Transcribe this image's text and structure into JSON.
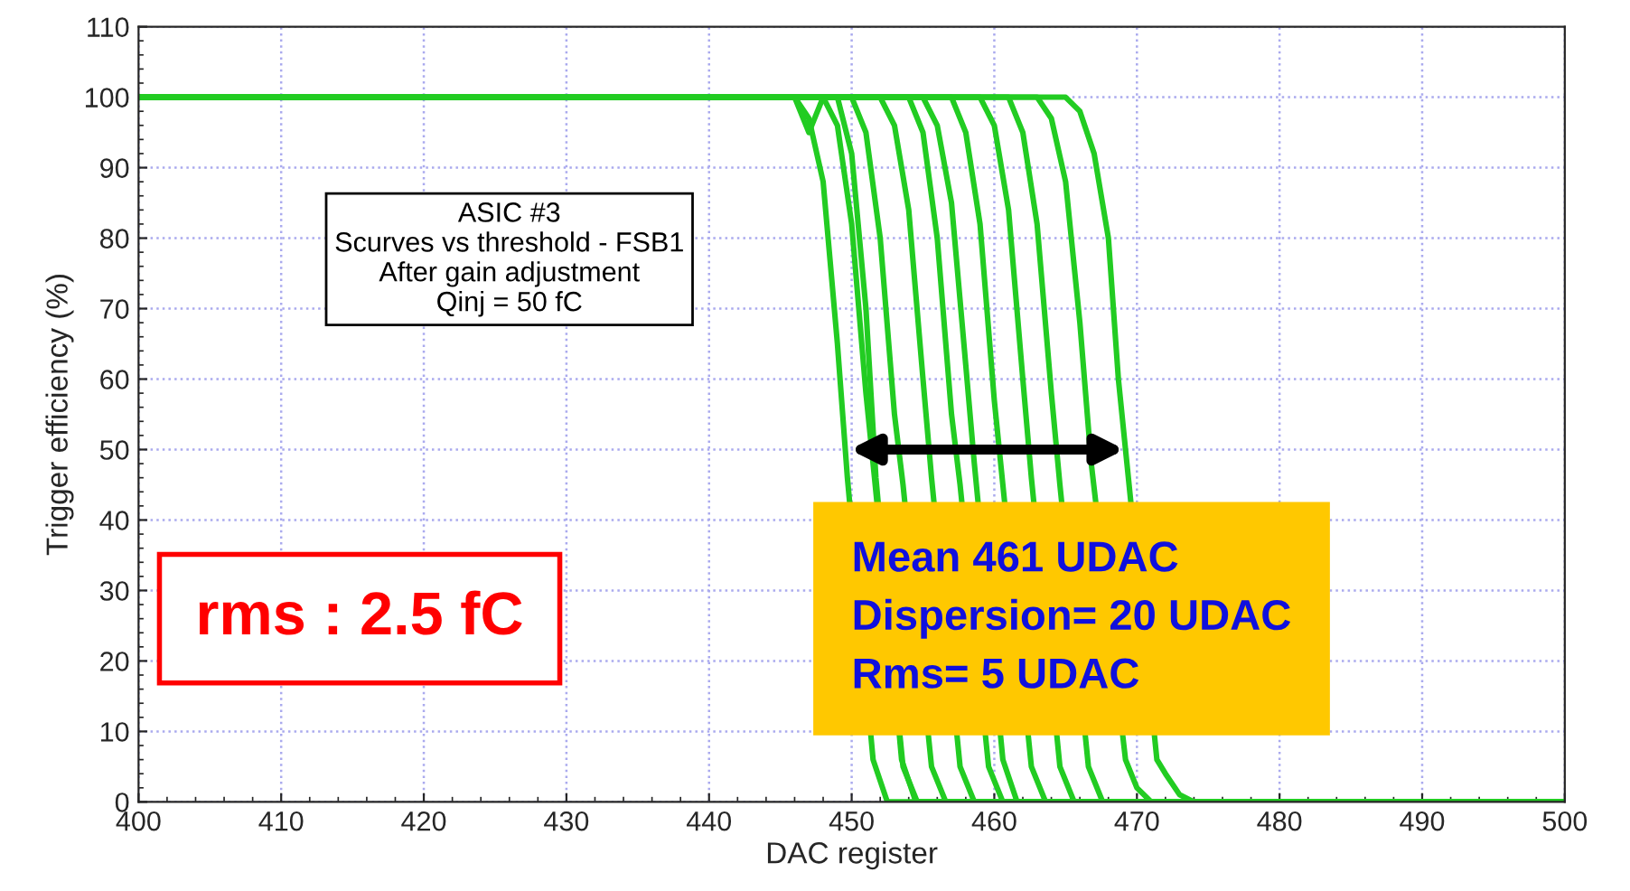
{
  "chart_data": {
    "type": "line",
    "xlabel": "DAC register",
    "ylabel": "Trigger efficiency (%)",
    "xlim": [
      400,
      500
    ],
    "xticks": [
      400,
      410,
      420,
      430,
      440,
      450,
      460,
      470,
      480,
      490,
      500
    ],
    "ylim": [
      0,
      110
    ],
    "yticks": [
      0,
      10,
      20,
      30,
      40,
      50,
      60,
      70,
      80,
      90,
      100,
      110
    ],
    "grid": true,
    "marker": "none",
    "line_style": "solid",
    "series": [
      {
        "color": "#22cc22",
        "x": [
          400,
          446,
          447,
          448,
          449,
          449.7,
          451.5,
          452.5,
          500
        ],
        "values": [
          100,
          100,
          97,
          88,
          65,
          46,
          6,
          0,
          0
        ]
      },
      {
        "color": "#22cc22",
        "x": [
          400,
          446,
          447,
          448,
          449,
          450,
          451,
          451.7,
          453.5,
          454.5,
          500
        ],
        "values": [
          100,
          100,
          95,
          100,
          100,
          92,
          70,
          46,
          6,
          0,
          0
        ]
      },
      {
        "color": "#22cc22",
        "x": [
          400,
          448,
          449,
          450,
          451,
          451.6,
          453.6,
          454.6,
          500
        ],
        "values": [
          100,
          100,
          96,
          82,
          58,
          46,
          5,
          0,
          0
        ]
      },
      {
        "color": "#22cc22",
        "x": [
          400,
          450,
          451,
          452,
          453,
          453.6,
          455.6,
          456.6,
          500
        ],
        "values": [
          100,
          100,
          95,
          80,
          55,
          45,
          5,
          0,
          0
        ]
      },
      {
        "color": "#22cc22",
        "x": [
          400,
          452,
          453,
          454,
          455,
          455.6,
          457.6,
          458.6,
          500
        ],
        "values": [
          100,
          100,
          96,
          84,
          60,
          46,
          5,
          0,
          0
        ]
      },
      {
        "color": "#22cc22",
        "x": [
          400,
          454,
          455,
          456,
          457,
          457.6,
          459.6,
          460.6,
          500
        ],
        "values": [
          100,
          100,
          95,
          80,
          55,
          45,
          5,
          0,
          0
        ]
      },
      {
        "color": "#22cc22",
        "x": [
          400,
          455,
          456,
          457,
          458,
          458.6,
          460.6,
          461.6,
          500
        ],
        "values": [
          100,
          100,
          96,
          85,
          62,
          48,
          6,
          0,
          0
        ]
      },
      {
        "color": "#22cc22",
        "x": [
          400,
          457,
          458,
          459,
          460,
          460.6,
          462.6,
          463.6,
          500
        ],
        "values": [
          100,
          100,
          95,
          82,
          57,
          45,
          5,
          0,
          0
        ]
      },
      {
        "color": "#22cc22",
        "x": [
          400,
          459,
          460,
          461,
          462,
          462.6,
          464.6,
          465.6,
          500
        ],
        "values": [
          100,
          100,
          96,
          84,
          60,
          46,
          5,
          0,
          0
        ]
      },
      {
        "color": "#22cc22",
        "x": [
          400,
          461,
          462,
          463,
          464,
          464.6,
          466.6,
          467.6,
          500
        ],
        "values": [
          100,
          100,
          95,
          82,
          58,
          45,
          5,
          0,
          0
        ]
      },
      {
        "color": "#22cc22",
        "x": [
          400,
          463,
          464,
          465,
          466,
          466.8,
          469.2,
          470,
          471,
          500
        ],
        "values": [
          100,
          100,
          97,
          88,
          68,
          48,
          6,
          2,
          0,
          0
        ]
      },
      {
        "color": "#22cc22",
        "x": [
          400,
          465,
          466,
          467,
          468,
          468.7,
          471.4,
          472,
          473,
          474,
          500
        ],
        "values": [
          100,
          100,
          98,
          92,
          80,
          60,
          6,
          4,
          1,
          0,
          0
        ]
      }
    ],
    "annotations": [
      "ASIC #3\nScurves vs threshold - FSB1\nAfter gain adjustment\nQinj = 50 fC",
      "rms : 2.5 fC",
      "Mean 461 UDAC\nDispersion= 20 UDAC\nRms= 5 UDAC"
    ]
  }
}
